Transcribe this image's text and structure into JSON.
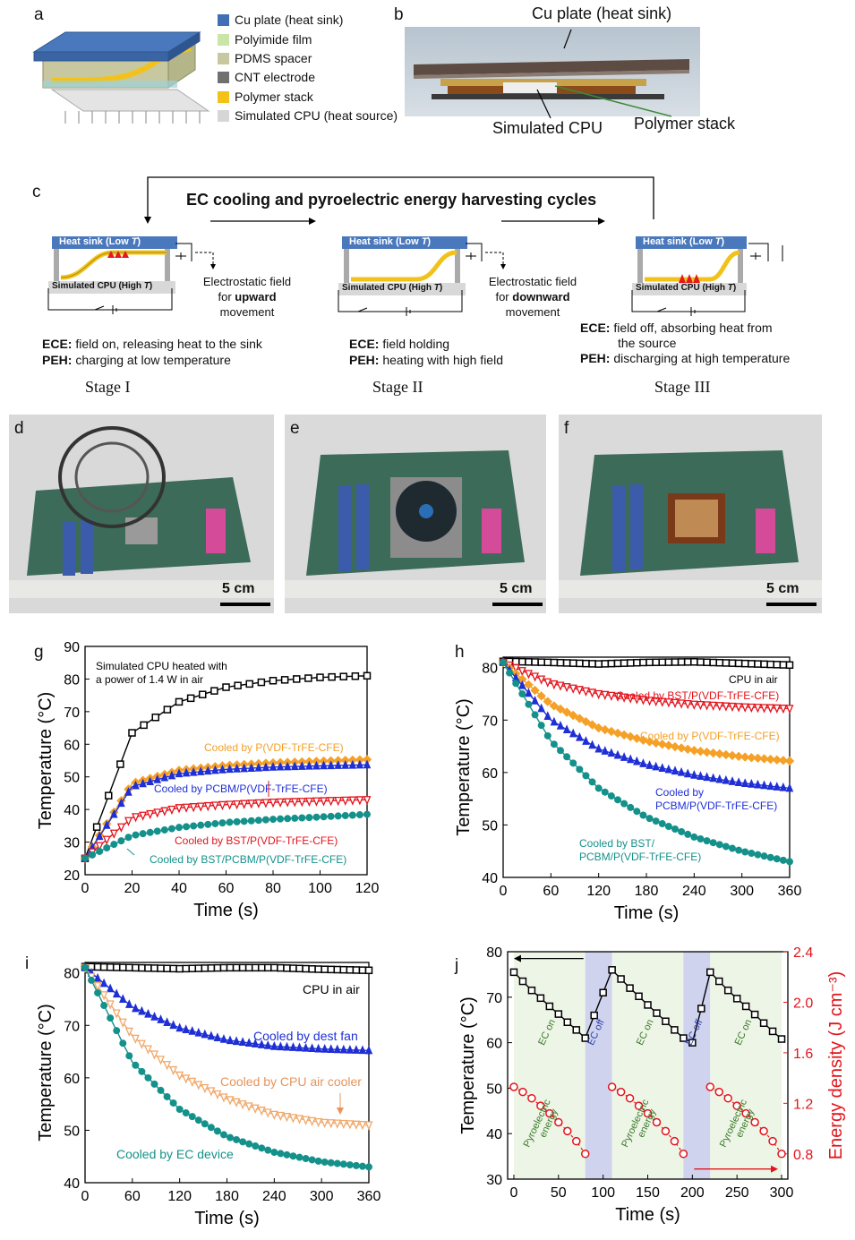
{
  "panels": {
    "a": {
      "label": "a",
      "legend": [
        {
          "text": "Cu plate (heat sink)",
          "color": "#3f6fb5"
        },
        {
          "text": "Polyimide film",
          "color": "#c9e6a8"
        },
        {
          "text": "PDMS spacer",
          "color": "#c8c8a0"
        },
        {
          "text": "CNT electrode",
          "color": "#707070"
        },
        {
          "text": "Polymer stack",
          "color": "#f2c21b"
        },
        {
          "text": "Simulated CPU (heat source)",
          "color": "#d6d6d6"
        }
      ]
    },
    "b": {
      "label": "b",
      "top_label": "Cu plate (heat sink)",
      "cpu_label": "Simulated CPU",
      "stack_label": "Polymer stack"
    },
    "c": {
      "label": "c",
      "title": "EC cooling and pyroelectric energy harvesting cycles",
      "heat_sink": "Heat sink (Low ",
      "cpu": "Simulated CPU (High ",
      "T": "T",
      "close": ")",
      "stage1": {
        "field_note_1": "Electrostatic field",
        "field_note_2": "for ",
        "field_note_bold": "upward",
        "field_note_3": "movement",
        "ece_key": "ECE:",
        "ece_text": " field on, releasing heat to the sink",
        "peh_key": "PEH:",
        "peh_text": " charging at low temperature",
        "name": "Stage I"
      },
      "stage2": {
        "field_note_1": "Electrostatic field",
        "field_note_2": "for ",
        "field_note_bold": "downward",
        "field_note_3": "movement",
        "ece_key": "ECE:",
        "ece_text": " field holding",
        "peh_key": "PEH:",
        "peh_text": " heating with high field",
        "name": "Stage II"
      },
      "stage3": {
        "ece_key": "ECE:",
        "ece_text_1": " field off, absorbing heat from",
        "ece_text_2": "the source",
        "peh_key": "PEH:",
        "peh_text": " discharging at high temperature",
        "name": "Stage III"
      }
    },
    "d": {
      "label": "d",
      "scale": "5 cm"
    },
    "e": {
      "label": "e",
      "scale": "5 cm"
    },
    "f": {
      "label": "f",
      "scale": "5 cm"
    },
    "g": {
      "label": "g"
    },
    "h": {
      "label": "h"
    },
    "i": {
      "label": "i"
    },
    "j": {
      "label": "j"
    }
  },
  "chart_data": [
    {
      "id": "g",
      "type": "line",
      "xlabel": "Time (s)",
      "ylabel": "Temperature (°C)",
      "xlim": [
        0,
        120
      ],
      "ylim": [
        20,
        90
      ],
      "xticks": [
        0,
        20,
        40,
        60,
        80,
        100,
        120
      ],
      "yticks": [
        20,
        30,
        40,
        50,
        60,
        70,
        80,
        90
      ],
      "annotations": [
        "Simulated CPU heated with",
        "a power of 1.4 W in air"
      ],
      "series": [
        {
          "name": "Simulated CPU heated with a power of 1.4 W in air",
          "color": "#000000",
          "marker": "square",
          "x": [
            0,
            20,
            40,
            60,
            80,
            100,
            120
          ],
          "values": [
            25,
            63.5,
            73,
            77.5,
            79.5,
            80.5,
            81
          ]
        },
        {
          "name": "Cooled by P(VDF-TrFE-CFE)",
          "color": "#f5a027",
          "marker": "diamond",
          "x": [
            0,
            20,
            40,
            60,
            80,
            100,
            120
          ],
          "values": [
            25,
            48,
            52,
            53.5,
            54.3,
            54.8,
            55.3
          ]
        },
        {
          "name": "Cooled by PCBM/P(VDF-TrFE-CFE)",
          "color": "#1f2fd6",
          "marker": "triangle-up",
          "x": [
            0,
            20,
            40,
            60,
            80,
            100,
            120
          ],
          "values": [
            25,
            47,
            51,
            52.3,
            53,
            53.4,
            53.7
          ]
        },
        {
          "name": "Cooled by BST/P(VDF-TrFE-CFE)",
          "color": "#e3141c",
          "marker": "triangle-down",
          "x": [
            0,
            20,
            40,
            60,
            80,
            100,
            120
          ],
          "values": [
            25,
            37.5,
            40.5,
            41.5,
            42.2,
            42.6,
            43
          ]
        },
        {
          "name": "Cooled by BST/PCBM/P(VDF-TrFE-CFE)",
          "color": "#14918a",
          "marker": "circle",
          "x": [
            0,
            20,
            40,
            60,
            80,
            100,
            120
          ],
          "values": [
            25,
            32,
            34.5,
            36,
            37,
            37.7,
            38.5
          ]
        }
      ]
    },
    {
      "id": "h",
      "type": "line",
      "xlabel": "Time (s)",
      "ylabel": "Temperature (°C)",
      "xlim": [
        0,
        360
      ],
      "ylim": [
        40,
        82
      ],
      "xticks": [
        0,
        60,
        120,
        180,
        240,
        300,
        360
      ],
      "yticks": [
        40,
        50,
        60,
        70,
        80
      ],
      "series": [
        {
          "name": "CPU in air",
          "color": "#000000",
          "marker": "square",
          "x": [
            0,
            60,
            120,
            180,
            240,
            300,
            360
          ],
          "values": [
            81.2,
            81,
            80.7,
            81,
            81.1,
            80.8,
            80.5
          ]
        },
        {
          "name": "Cooled by BST/P(VDF-TrFE-CFE)",
          "color": "#e3141c",
          "marker": "triangle-down",
          "x": [
            0,
            60,
            120,
            180,
            240,
            300,
            360
          ],
          "values": [
            81,
            77,
            75,
            73.8,
            73,
            72.5,
            72.2
          ]
        },
        {
          "name": "Cooled by P(VDF-TrFE-CFE)",
          "color": "#f5a027",
          "marker": "diamond",
          "x": [
            0,
            60,
            120,
            180,
            240,
            300,
            360
          ],
          "values": [
            81,
            73,
            68.5,
            66,
            64.2,
            63,
            62.2
          ]
        },
        {
          "name": "Cooled by PCBM/P(VDF-TrFE-CFE)",
          "color": "#1f2fd6",
          "marker": "triangle-up",
          "x": [
            0,
            60,
            120,
            180,
            240,
            300,
            360
          ],
          "values": [
            81,
            70,
            64.5,
            61.5,
            59.5,
            58,
            57
          ]
        },
        {
          "name": "Cooled by BST/PCBM/P(VDF-TrFE-CFE)",
          "color": "#14918a",
          "marker": "circle",
          "x": [
            0,
            60,
            120,
            180,
            240,
            300,
            360
          ],
          "values": [
            81,
            66,
            57,
            51.5,
            47.7,
            45,
            43
          ]
        }
      ],
      "annotations": [
        "CPU in air",
        "Cooled by BST/P(VDF-TrFE-CFE)",
        "Cooled by P(VDF-TrFE-CFE)",
        "Cooled by",
        "PCBM/P(VDF-TrFE-CFE)",
        "Cooled by BST/",
        "PCBM/P(VDF-TrFE-CFE)"
      ]
    },
    {
      "id": "i",
      "type": "line",
      "xlabel": "Time (s)",
      "ylabel": "Temperature (°C)",
      "xlim": [
        0,
        360
      ],
      "ylim": [
        40,
        82
      ],
      "xticks": [
        0,
        60,
        120,
        180,
        240,
        300,
        360
      ],
      "yticks": [
        40,
        50,
        60,
        70,
        80
      ],
      "series": [
        {
          "name": "CPU in air",
          "color": "#000000",
          "marker": "square",
          "x": [
            0,
            60,
            120,
            180,
            240,
            300,
            360
          ],
          "values": [
            81.2,
            81,
            80.8,
            81,
            81,
            80.7,
            80.5
          ]
        },
        {
          "name": "Cooled by dest fan",
          "color": "#1f2fd6",
          "marker": "triangle-up",
          "x": [
            0,
            60,
            120,
            180,
            240,
            300,
            360
          ],
          "values": [
            81,
            73.5,
            69.5,
            67.2,
            66,
            65.5,
            65.2
          ]
        },
        {
          "name": "Cooled by CPU air cooler",
          "color": "#f0a86a",
          "marker": "triangle-down",
          "x": [
            0,
            60,
            120,
            180,
            240,
            300,
            360
          ],
          "values": [
            81,
            68,
            60.5,
            56,
            53,
            51.5,
            51
          ]
        },
        {
          "name": "Cooled by EC device",
          "color": "#14918a",
          "marker": "circle",
          "x": [
            0,
            60,
            120,
            180,
            240,
            300,
            360
          ],
          "values": [
            81,
            63,
            54,
            48.8,
            45.8,
            44,
            43
          ]
        }
      ]
    },
    {
      "id": "j",
      "type": "line",
      "xlabel": "Time (s)",
      "ylabel": "Temperature (°C)",
      "y2label": "Energy density (J cm⁻³)",
      "xlim": [
        -7,
        307
      ],
      "ylim": [
        30,
        80
      ],
      "y2lim": [
        0.6,
        2.4
      ],
      "xticks": [
        0,
        50,
        100,
        150,
        200,
        250,
        300
      ],
      "yticks": [
        30,
        40,
        50,
        60,
        70,
        80
      ],
      "y2ticks": [
        0.8,
        1.2,
        1.6,
        2.0,
        2.4
      ],
      "region_labels": [
        "EC on",
        "EC off",
        "EC on",
        "EC off",
        "EC on"
      ],
      "energy_label": [
        "Pyroelectric",
        "energy"
      ],
      "series": [
        {
          "name": "Temperature",
          "color": "#000000",
          "marker": "square",
          "axis": "left",
          "x": [
            0,
            10,
            20,
            30,
            40,
            50,
            60,
            70,
            80,
            90,
            100,
            110,
            120,
            130,
            140,
            150,
            160,
            170,
            180,
            190,
            200,
            210,
            220,
            230,
            240,
            250,
            260,
            270,
            280,
            290,
            300
          ],
          "values": [
            75.5,
            73.5,
            71.5,
            69.8,
            68,
            66.3,
            64.5,
            62.8,
            61,
            66,
            71,
            76,
            74,
            72,
            70.2,
            68.3,
            66.5,
            64.7,
            62.8,
            61,
            60,
            67.5,
            75.5,
            73.5,
            71.5,
            69.7,
            68,
            66.2,
            64.3,
            62.5,
            60.8
          ]
        },
        {
          "name": "Pyroelectric energy",
          "color": "#e3141c",
          "marker": "circle-open",
          "axis": "right",
          "x": [
            0,
            10,
            20,
            30,
            40,
            50,
            60,
            70,
            80,
            110,
            120,
            130,
            140,
            150,
            160,
            170,
            180,
            190,
            220,
            230,
            240,
            250,
            260,
            270,
            280,
            290,
            300
          ],
          "values": [
            1.33,
            1.29,
            1.24,
            1.18,
            1.12,
            1.05,
            0.98,
            0.9,
            0.8,
            1.33,
            1.29,
            1.24,
            1.18,
            1.12,
            1.05,
            0.98,
            0.9,
            0.8,
            1.33,
            1.29,
            1.24,
            1.18,
            1.12,
            1.05,
            0.98,
            0.9,
            0.8
          ]
        }
      ]
    }
  ]
}
